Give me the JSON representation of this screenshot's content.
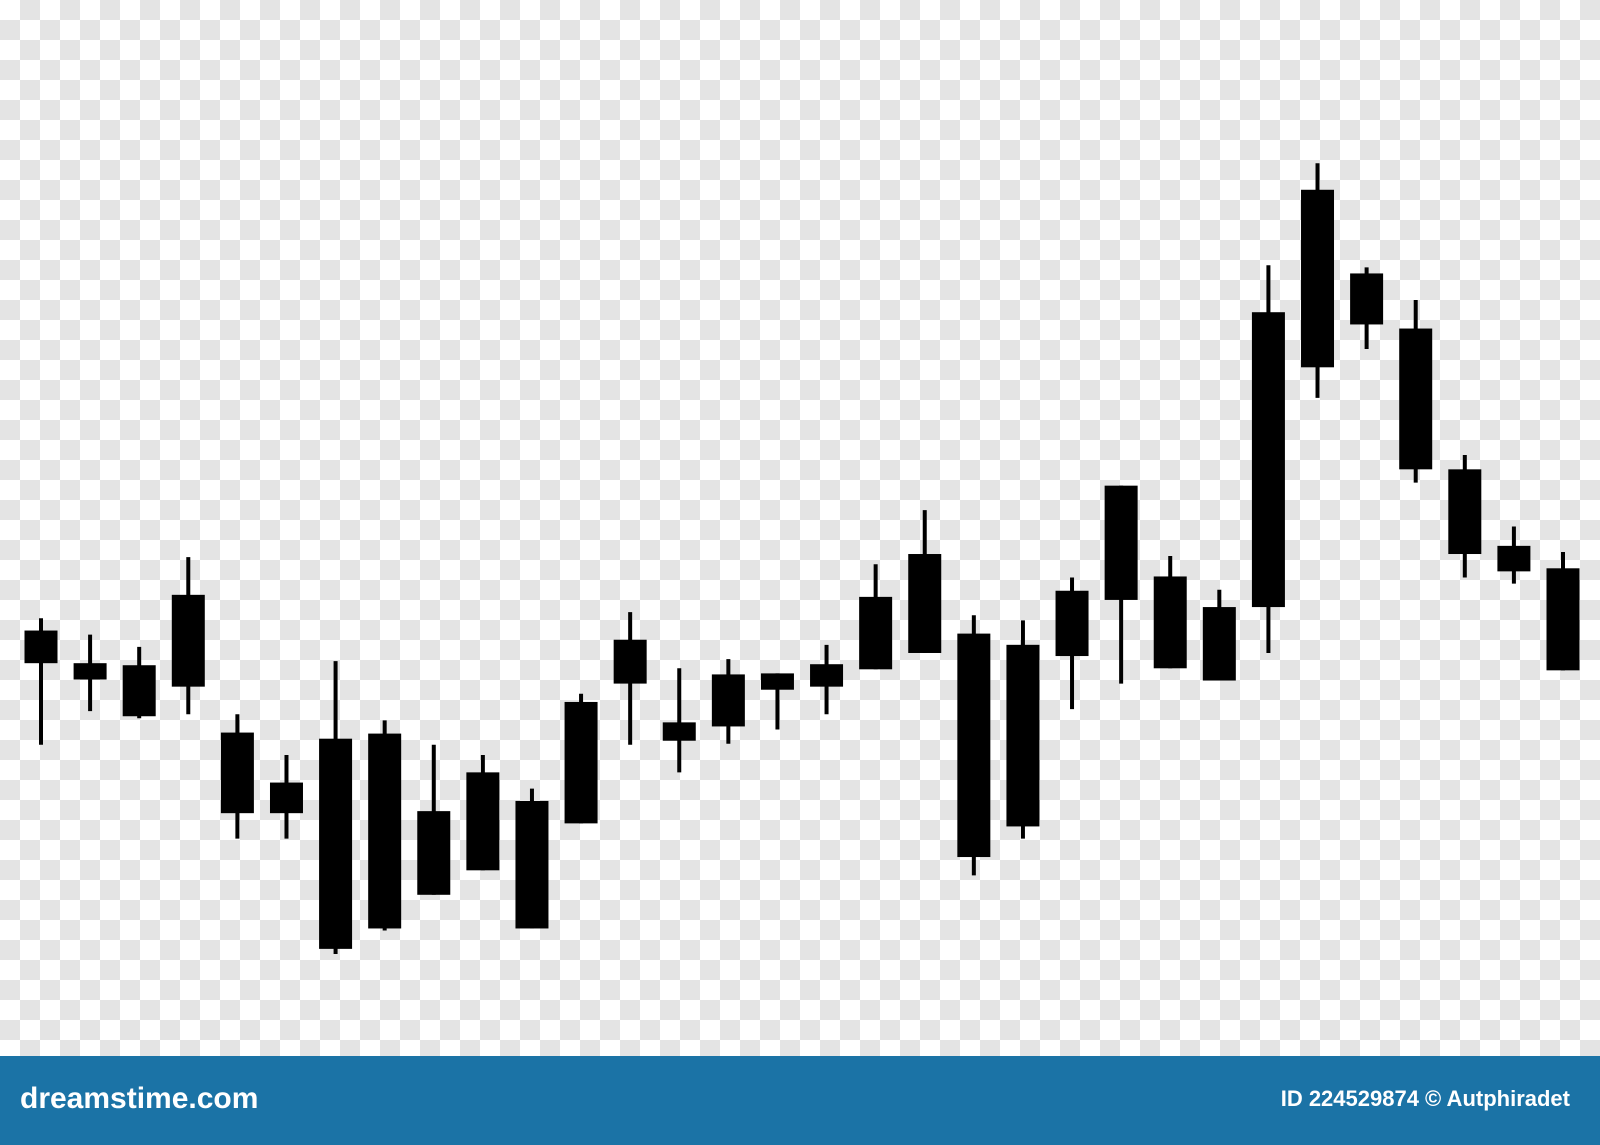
{
  "chart_data": {
    "type": "candlestick",
    "color": "#000000",
    "ylim": [
      0,
      1035
    ],
    "open": [
      417,
      385,
      383,
      452,
      317,
      268,
      311,
      316,
      240,
      278,
      250,
      347,
      408,
      327,
      374,
      375,
      384,
      450,
      492,
      414,
      403,
      456,
      559,
      470,
      440,
      729,
      849,
      767,
      713,
      575,
      500,
      478
    ],
    "high": [
      429,
      413,
      401,
      489,
      335,
      295,
      387,
      329,
      305,
      295,
      262,
      355,
      435,
      380,
      389,
      375,
      403,
      482,
      535,
      432,
      427,
      469,
      559,
      490,
      457,
      775,
      875,
      773,
      741,
      589,
      519,
      494
    ],
    "low": [
      305,
      338,
      331,
      335,
      213,
      213,
      100,
      123,
      158,
      182,
      125,
      228,
      305,
      278,
      306,
      320,
      335,
      379,
      395,
      177,
      213,
      340,
      365,
      380,
      368,
      395,
      645,
      693,
      562,
      469,
      463,
      378
    ],
    "close": [
      385,
      369,
      333,
      362,
      238,
      238,
      105,
      125,
      158,
      182,
      125,
      228,
      365,
      309,
      323,
      359,
      362,
      379,
      395,
      195,
      225,
      392,
      447,
      380,
      368,
      440,
      675,
      717,
      575,
      492,
      475,
      378
    ]
  },
  "footer": {
    "site": "dreamstime.com",
    "credit": "ID 224529874 © Autphiradet"
  }
}
